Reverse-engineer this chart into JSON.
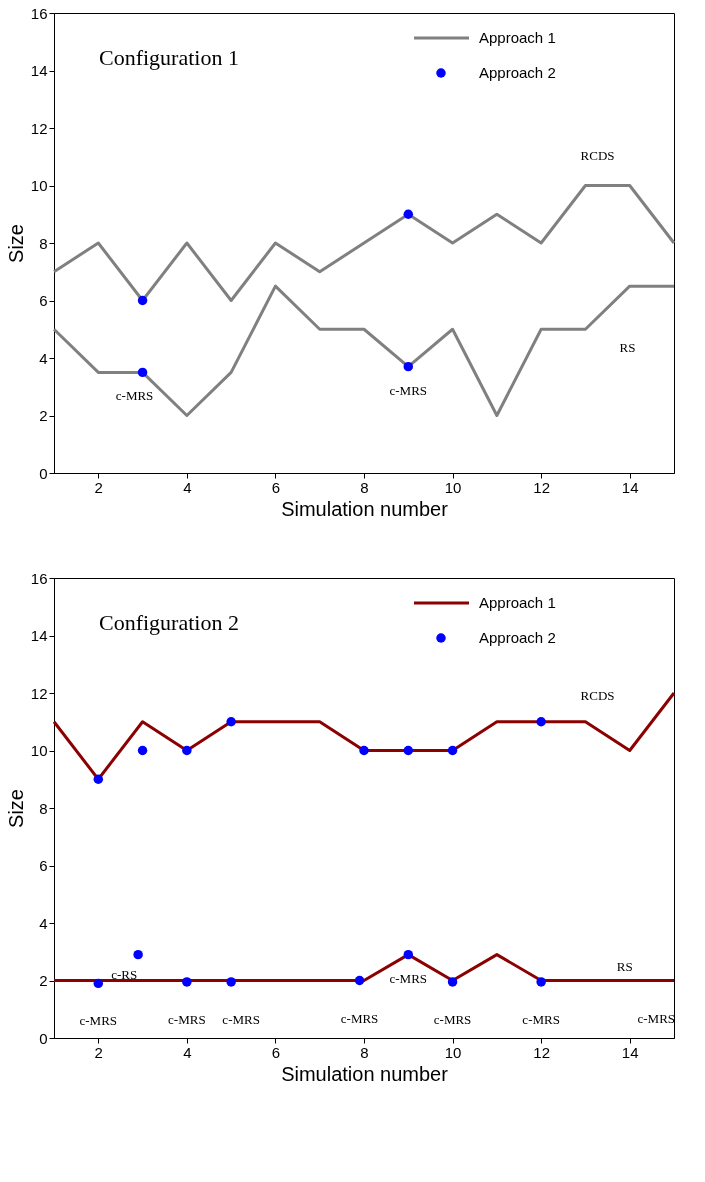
{
  "chart_data": [
    {
      "type": "line",
      "title": "Configuration 1",
      "xlabel": "Simulation number",
      "ylabel": "Size",
      "x": [
        1,
        2,
        3,
        4,
        5,
        6,
        7,
        8,
        9,
        10,
        11,
        12,
        13,
        14,
        15
      ],
      "series": [
        {
          "name": "Approach 1",
          "color": "#808080",
          "values": [
            7,
            8,
            6,
            8,
            6,
            8,
            7,
            8,
            9,
            8,
            9,
            8,
            10,
            10,
            8
          ]
        },
        {
          "color": "#808080",
          "values": [
            5,
            3.5,
            3.5,
            2,
            3.5,
            6.5,
            5,
            5,
            3.7,
            5,
            2,
            5,
            5,
            6.5,
            6.5
          ]
        },
        {
          "name": "Approach 2",
          "type": "scatter",
          "color": "#0000ff",
          "x": [
            3,
            3,
            9,
            9
          ],
          "values": [
            6,
            3.5,
            9,
            3.7
          ]
        }
      ],
      "annotations": [
        {
          "text": "RCDS",
          "x": 13.5,
          "y": 10
        },
        {
          "text": "c-MRS",
          "x": 3,
          "y": 3.5
        },
        {
          "text": "c-MRS",
          "x": 9,
          "y": 3.7
        },
        {
          "text": "RS",
          "x": 13.5,
          "y": 5.75
        }
      ],
      "xlim": [
        1,
        15
      ],
      "ylim": [
        0,
        16
      ],
      "xticks": [
        2,
        4,
        6,
        8,
        10,
        12,
        14
      ],
      "yticks": [
        0,
        2,
        4,
        6,
        8,
        10,
        12,
        14,
        16
      ],
      "legend": "top right",
      "line_style": "solid",
      "grid": false
    },
    {
      "type": "line",
      "title": "Configuration 2",
      "xlabel": "Simulation number",
      "ylabel": "Size",
      "x": [
        1,
        2,
        3,
        4,
        5,
        6,
        7,
        8,
        9,
        10,
        11,
        12,
        13,
        14,
        15
      ],
      "series": [
        {
          "name": "Approach 1",
          "color": "#8b0000",
          "values": [
            11,
            9,
            11,
            10,
            11,
            11,
            11,
            10,
            10,
            10,
            11,
            11,
            11,
            10,
            12
          ]
        },
        {
          "color": "#8b0000",
          "values": [
            2,
            2,
            2,
            2,
            2,
            2,
            2,
            2,
            2.9,
            2,
            2.9,
            2,
            2,
            2,
            2
          ]
        },
        {
          "name": "Approach 2",
          "type": "scatter",
          "color": "#0000ff",
          "x": [
            2,
            3,
            4,
            5,
            8,
            9,
            10,
            12,
            2,
            2.9,
            4,
            5,
            7.9,
            9,
            10,
            12
          ],
          "values": [
            9,
            10,
            10,
            11,
            10,
            10,
            10,
            11,
            1.9,
            2.9,
            1.95,
            1.95,
            2,
            2.9,
            1.95,
            1.95
          ]
        }
      ],
      "annotations": [
        {
          "text": "RCDS",
          "x": 13.5,
          "y": 10.5
        },
        {
          "text": "c-RS",
          "x": 2.9,
          "y": 2.9
        },
        {
          "text": "RS",
          "x": 14,
          "y": 2
        },
        {
          "text": "c-MRS",
          "x": 2,
          "y": 1.9
        },
        {
          "text": "c-MRS",
          "x": 4,
          "y": 1.95
        },
        {
          "text": "c-MRS",
          "x": 5,
          "y": 1.95
        },
        {
          "text": "c-MRS",
          "x": 7.9,
          "y": 2
        },
        {
          "text": "c-MRS",
          "x": 9,
          "y": 2.9
        },
        {
          "text": "c-MRS",
          "x": 10,
          "y": 1.95
        },
        {
          "text": "c-MRS",
          "x": 12,
          "y": 1.95
        },
        {
          "text": "c-MRS",
          "x": 14.6,
          "y": 2
        }
      ],
      "xlim": [
        1,
        15
      ],
      "ylim": [
        0,
        16
      ],
      "xticks": [
        2,
        4,
        6,
        8,
        10,
        12,
        14
      ],
      "yticks": [
        0,
        2,
        4,
        6,
        8,
        10,
        12,
        14,
        16
      ],
      "legend": "top right",
      "line_style": "solid",
      "grid": false
    }
  ]
}
